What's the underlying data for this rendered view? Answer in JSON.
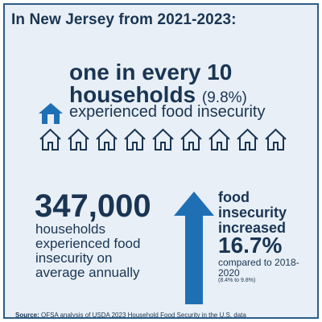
{
  "title": "In New Jersey from 2021-2023:",
  "headline": {
    "line1": "one in every 10",
    "line2": "households",
    "percent": "(9.8%)",
    "line3": "experienced food insecurity"
  },
  "households_icons": {
    "count": 10,
    "highlighted": 1,
    "icon": "house-icon"
  },
  "stat_left": {
    "number": "347,000",
    "description": "households experienced food insecurity on average annually"
  },
  "stat_right": {
    "label": "food insecurity increased",
    "value": "16.7%",
    "comparison": "compared to 2018-2020",
    "detail": "(8.4% to 9.8%)"
  },
  "source": {
    "label": "Source:",
    "text": " OFSA analysis of USDA 2023 Household Food Security in the U.S. data"
  },
  "colors": {
    "navy": "#1a3553",
    "blue": "#1f6fb5",
    "background": "#e8eff6",
    "border": "#2d5c86"
  }
}
